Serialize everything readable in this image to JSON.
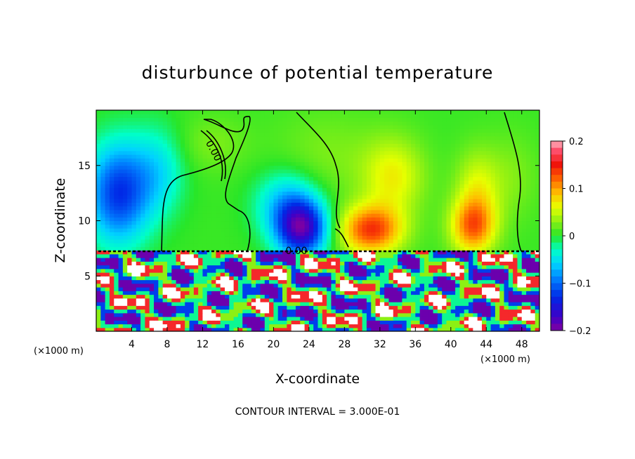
{
  "chart_data": {
    "type": "heatmap",
    "title": "disturbunce of potential temperature",
    "xlabel": "X-coordinate",
    "ylabel": "Z-coordinate",
    "x_unit": "(×1000 m)",
    "xlim": [
      0,
      50
    ],
    "ylim": [
      0,
      20
    ],
    "x_ticks": [
      4,
      8,
      12,
      16,
      20,
      24,
      28,
      32,
      36,
      40,
      44,
      48
    ],
    "y_ticks": [
      5,
      10,
      15
    ],
    "colorbar": {
      "min": -0.2,
      "max": 0.2,
      "tick_values": [
        0.2,
        0.1,
        0,
        -0.1,
        -0.2
      ],
      "tick_labels": [
        "0.2",
        "0.1",
        "0",
        "−0.1",
        "−0.2"
      ]
    },
    "contour_labels": [
      "0.00",
      "0.00"
    ],
    "contour_interval_text": "CONTOUR INTERVAL = 3.000E-01",
    "upper_features": [
      {
        "x": 2.5,
        "z": 12.5,
        "sx": 3.5,
        "sz": 4.5,
        "value": -0.13
      },
      {
        "x": 7.0,
        "z": 14.5,
        "sx": 3.0,
        "sz": 4.0,
        "value": -0.05
      },
      {
        "x": 23.2,
        "z": 9.3,
        "sx": 2.8,
        "sz": 2.5,
        "value": -0.17
      },
      {
        "x": 21.5,
        "z": 11.5,
        "sx": 3.5,
        "sz": 3.0,
        "value": -0.07
      },
      {
        "x": 31.0,
        "z": 9.2,
        "sx": 3.5,
        "sz": 2.2,
        "value": 0.13
      },
      {
        "x": 33.5,
        "z": 14.0,
        "sx": 3.5,
        "sz": 3.5,
        "value": 0.06
      },
      {
        "x": 42.5,
        "z": 9.5,
        "sx": 2.5,
        "sz": 2.5,
        "value": 0.11
      },
      {
        "x": 43.0,
        "z": 13.0,
        "sx": 2.5,
        "sz": 3.5,
        "value": 0.05
      },
      {
        "x": 26.0,
        "z": 16.0,
        "sx": 6.0,
        "sz": 4.0,
        "value": 0.02
      },
      {
        "x": 13.0,
        "z": 17.0,
        "sx": 4.0,
        "sz": 2.5,
        "value": 0.02
      },
      {
        "x": 47.0,
        "z": 14.0,
        "sx": 3.0,
        "sz": 4.0,
        "value": 0.02
      }
    ],
    "interface_height": 7.3,
    "lower_layer_description": "turbulent layer with saturated red/white and blue/purple patches below z = 7.3"
  }
}
